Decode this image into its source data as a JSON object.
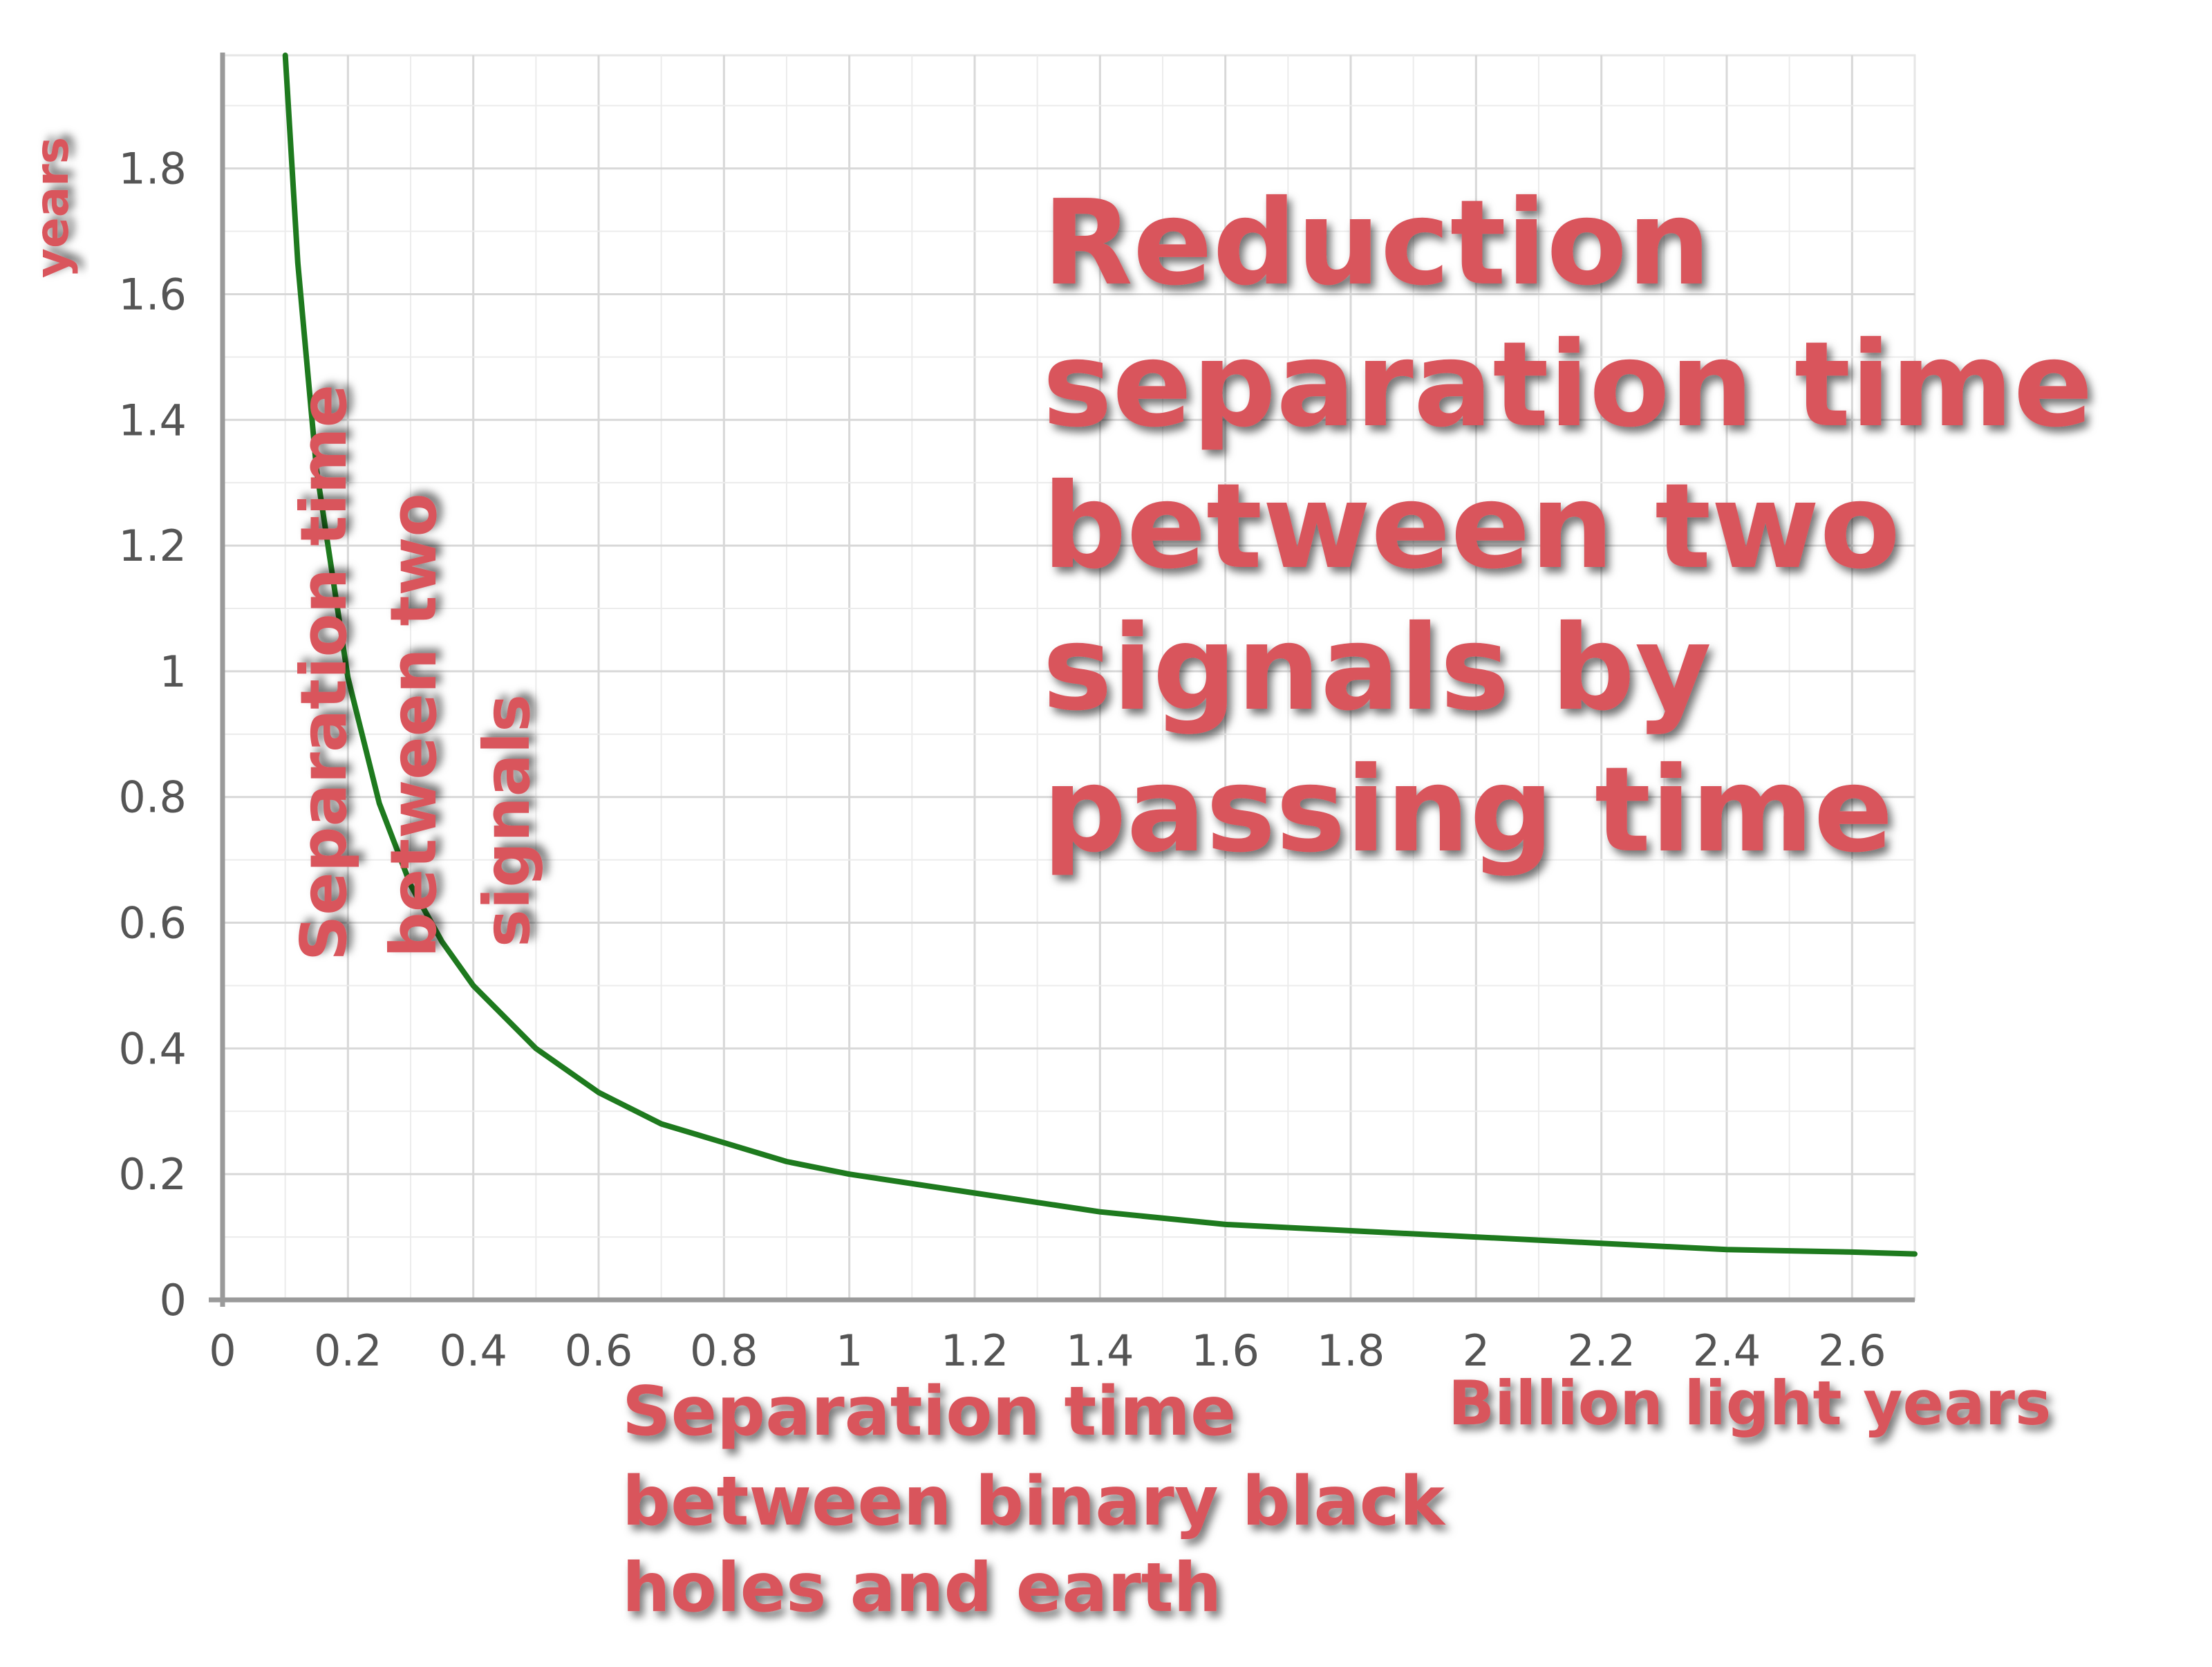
{
  "chart_data": {
    "type": "line",
    "x_ticks": [
      "0",
      "0.2",
      "0.4",
      "0.6",
      "0.8",
      "1",
      "1.2",
      "1.4",
      "1.6",
      "1.8",
      "2",
      "2.2",
      "2.4",
      "2.6"
    ],
    "y_ticks": [
      "0",
      "0.2",
      "0.4",
      "0.6",
      "0.8",
      "1",
      "1.2",
      "1.4",
      "1.6",
      "1.8"
    ],
    "xlim": [
      0,
      2.7
    ],
    "ylim": [
      0,
      1.98
    ],
    "grid": true,
    "series": [
      {
        "color": "#1e7a1e",
        "x": [
          0.1,
          0.12,
          0.15,
          0.2,
          0.25,
          0.3,
          0.35,
          0.4,
          0.5,
          0.6,
          0.7,
          0.8,
          0.9,
          1.0,
          1.2,
          1.4,
          1.6,
          1.8,
          2.0,
          2.2,
          2.4,
          2.6,
          2.7
        ],
        "y": [
          1.98,
          1.65,
          1.32,
          0.99,
          0.79,
          0.66,
          0.57,
          0.5,
          0.4,
          0.33,
          0.28,
          0.25,
          0.22,
          0.2,
          0.17,
          0.14,
          0.12,
          0.11,
          0.1,
          0.09,
          0.08,
          0.076,
          0.073
        ]
      }
    ],
    "annotations": {
      "y_unit": "years",
      "y_label": [
        "Separation time",
        "between two",
        "signals"
      ],
      "title": [
        "Reduction",
        "separation time",
        "between two",
        "signals by",
        "passing time"
      ],
      "x_label": [
        "Separation time",
        "between binary black",
        "holes and earth"
      ],
      "x_unit": "Billion  light years"
    }
  }
}
